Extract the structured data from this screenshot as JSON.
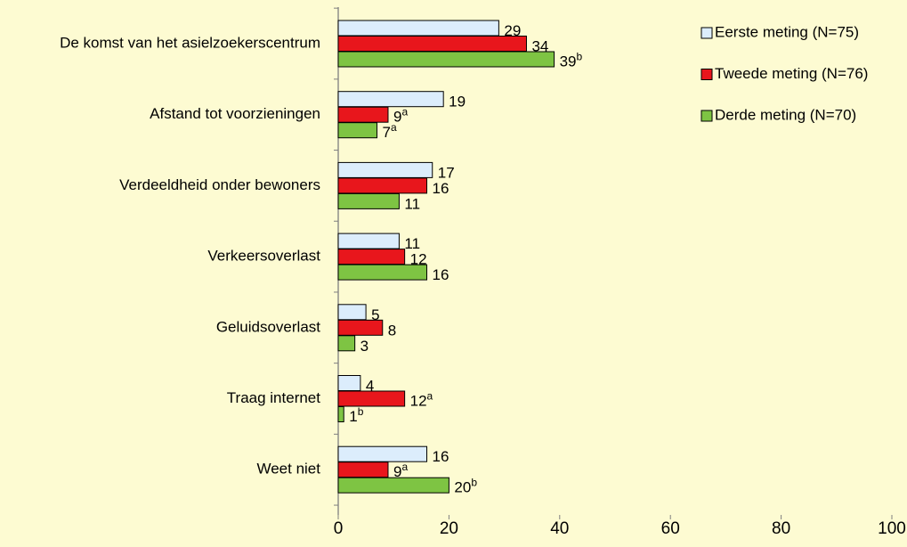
{
  "chart_data": {
    "type": "bar",
    "orientation": "horizontal",
    "categories": [
      "De komst van het asielzoekerscentrum",
      "Afstand tot voorzieningen",
      "Verdeeldheid onder bewoners",
      "Verkeersoverlast",
      "Geluidsoverlast",
      "Traag internet",
      "Weet niet"
    ],
    "series": [
      {
        "name": "Eerste meting (N=75)",
        "color": "#dcedfc",
        "values": [
          29,
          19,
          17,
          11,
          5,
          4,
          16
        ]
      },
      {
        "name": "Tweede meting (N=76)",
        "color": "#e8161c",
        "values": [
          34,
          9,
          16,
          12,
          8,
          12,
          9
        ],
        "value_labels": [
          "34",
          "9a",
          "16",
          "12",
          "8",
          "12a",
          "9a"
        ]
      },
      {
        "name": "Derde meting (N=70)",
        "color": "#7ec443",
        "values": [
          39,
          7,
          11,
          16,
          3,
          1,
          20
        ],
        "value_labels": [
          "39b",
          "7a",
          "11",
          "16",
          "3",
          "1b",
          "20b"
        ]
      }
    ],
    "xlim": [
      0,
      100
    ],
    "xticks": [
      0,
      20,
      40,
      60,
      80,
      100
    ],
    "legend": "top-right"
  }
}
